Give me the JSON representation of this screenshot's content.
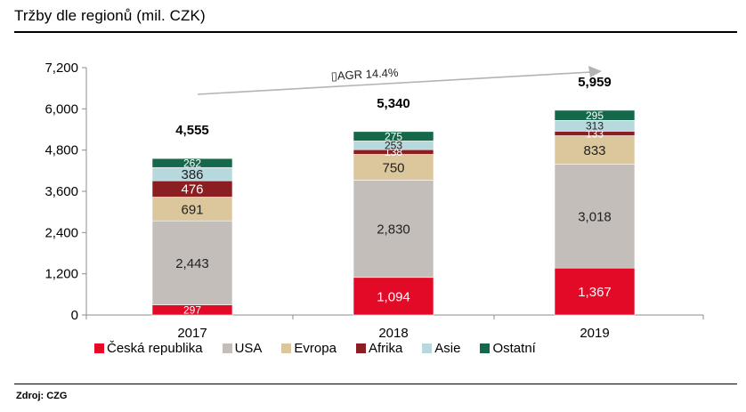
{
  "header": {
    "title": "Tržby dle regionů (mil. CZK)"
  },
  "footer": {
    "source": "Zdroj: CZG"
  },
  "chart_data": {
    "type": "bar",
    "stacked": true,
    "title": "Tržby dle regionů (mil. CZK)",
    "categories": [
      "2017",
      "2018",
      "2019"
    ],
    "ylim": [
      0,
      7200
    ],
    "yticks": [
      0,
      1200,
      2400,
      3600,
      4800,
      6000,
      7200
    ],
    "ytick_labels": [
      "0",
      "1,200",
      "2,400",
      "3,600",
      "4,800",
      "6,000",
      "7,200"
    ],
    "grid": false,
    "legend_position": "bottom",
    "series": [
      {
        "name": "Česká republika",
        "color": "#e30a27",
        "label_color": "#ffffff",
        "values": [
          297,
          1094,
          1367
        ],
        "labels": [
          "297",
          "1,094",
          "1,367"
        ]
      },
      {
        "name": "USA",
        "color": "#c4bebb",
        "label_color": "#222222",
        "values": [
          2443,
          2830,
          3018
        ],
        "labels": [
          "2,443",
          "2,830",
          "3,018"
        ]
      },
      {
        "name": "Evropa",
        "color": "#dcc69c",
        "label_color": "#222222",
        "values": [
          691,
          750,
          833
        ],
        "labels": [
          "691",
          "750",
          "833"
        ]
      },
      {
        "name": "Afrika",
        "color": "#8b1e22",
        "label_color": "#ffffff",
        "values": [
          476,
          138,
          133
        ],
        "labels": [
          "476",
          "138",
          "133"
        ]
      },
      {
        "name": "Asie",
        "color": "#b7d8dc",
        "label_color": "#222222",
        "values": [
          386,
          253,
          313
        ],
        "labels": [
          "386",
          "253",
          "313"
        ]
      },
      {
        "name": "Ostatní",
        "color": "#15684a",
        "label_color": "#ffffff",
        "values": [
          262,
          275,
          295
        ],
        "labels": [
          "262",
          "275",
          "295"
        ]
      }
    ],
    "totals": [
      4555,
      5340,
      5959
    ],
    "total_labels": [
      "4,555",
      "5,340",
      "5,959"
    ],
    "annotation": {
      "text": "▯AGR 14.4%",
      "color": "#b3b3b3"
    }
  }
}
